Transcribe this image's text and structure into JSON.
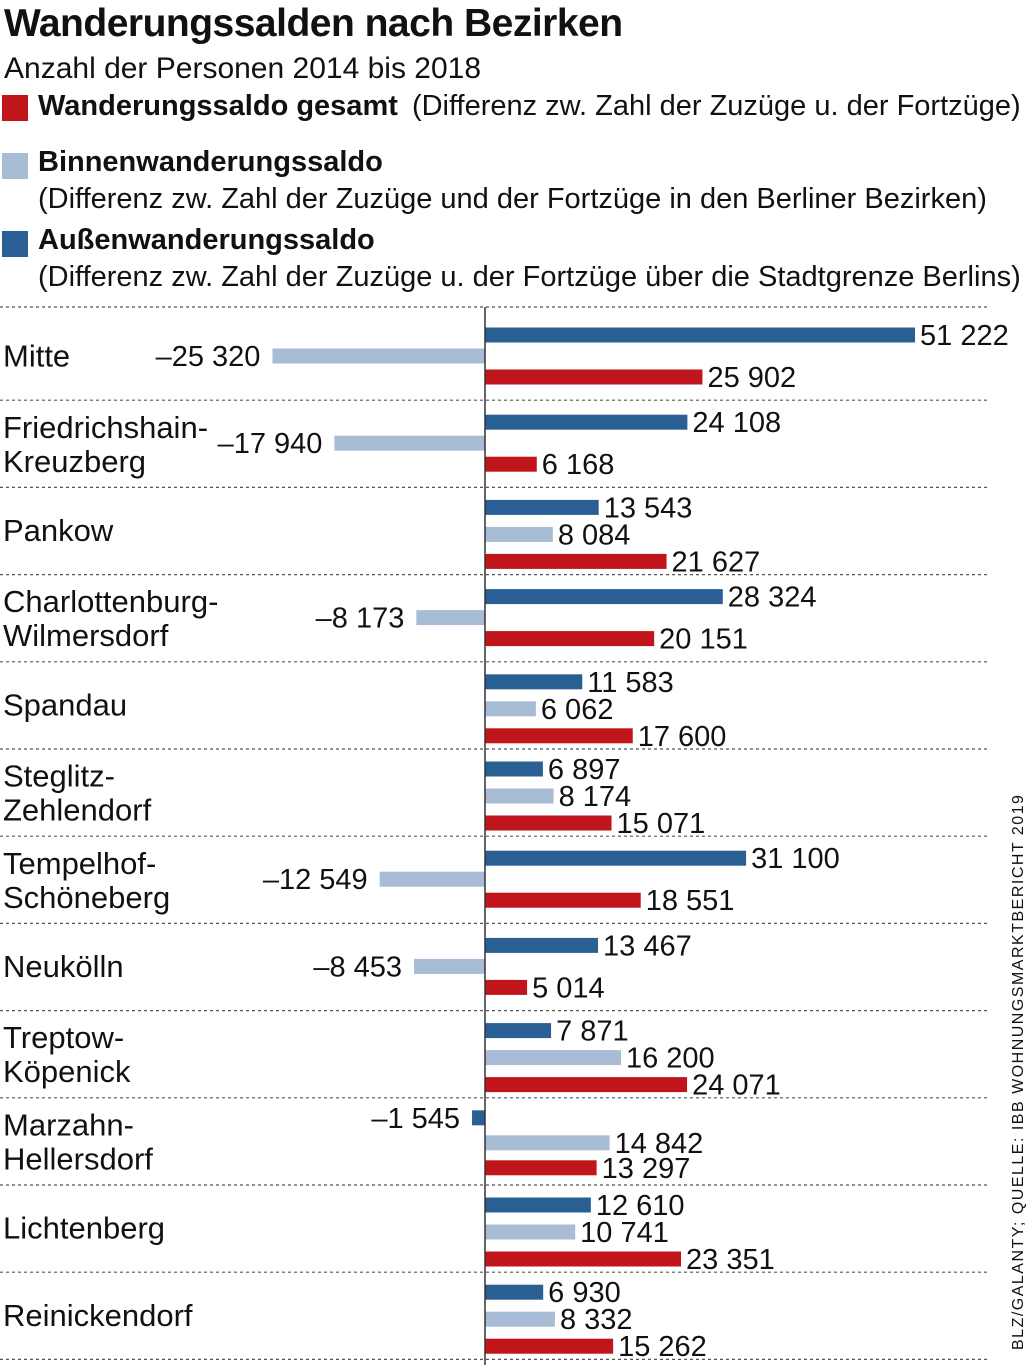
{
  "title": "Wanderungssalden nach Bezirken",
  "subtitle": "Anzahl der Personen 2014 bis 2018",
  "legend": [
    {
      "name": "Wanderungssaldo gesamt",
      "desc": "(Differenz zw. Zahl der Zuzüge u. der Fortzüge)",
      "color": "#c0151b"
    },
    {
      "name": "Binnenwanderungssaldo",
      "desc": "(Differenz zw. Zahl der Zuzüge und der Fortzüge in den Berliner Bezirken)",
      "color": "#a9bcd6"
    },
    {
      "name": "Außenwanderungssaldo",
      "desc": "(Differenz zw. Zahl der Zuzüge u. der Fortzüge über die Stadtgrenze Berlins)",
      "color": "#2a5f93"
    }
  ],
  "source": "BLZ/GALANTY; QUELLE: IBB WOHNUNGSMARKTBERICHT 2019",
  "chart_data": {
    "type": "bar",
    "orientation": "horizontal",
    "categories": [
      [
        "Mitte"
      ],
      [
        "Friedrichshain-",
        "Kreuzberg"
      ],
      [
        "Pankow"
      ],
      [
        "Charlottenburg-",
        "Wilmersdorf"
      ],
      [
        "Spandau"
      ],
      [
        "Steglitz-",
        "Zehlendorf"
      ],
      [
        "Tempelhof-",
        "Schöneberg"
      ],
      [
        "Neukölln"
      ],
      [
        "Treptow-",
        "Köpenick"
      ],
      [
        "Marzahn-",
        "Hellersdorf"
      ],
      [
        "Lichtenberg"
      ],
      [
        "Reinickendorf"
      ]
    ],
    "series": [
      {
        "name": "Außenwanderungssaldo",
        "color": "#2a5f93",
        "values": [
          51222,
          24108,
          13543,
          28324,
          11583,
          6897,
          31100,
          13467,
          7871,
          -1545,
          12610,
          6930
        ],
        "labels": [
          "51 222",
          "24 108",
          "13 543",
          "28 324",
          "11 583",
          "6 897",
          "31 100",
          "13 467",
          "7 871",
          "–1 545",
          "12 610",
          "6 930"
        ]
      },
      {
        "name": "Binnenwanderungssaldo",
        "color": "#a9bcd6",
        "values": [
          -25320,
          -17940,
          8084,
          -8173,
          6062,
          8174,
          -12549,
          -8453,
          16200,
          14842,
          10741,
          8332
        ],
        "labels": [
          "–25 320",
          "–17 940",
          "8 084",
          "–8 173",
          "6 062",
          "8 174",
          "–12 549",
          "–8 453",
          "16 200",
          "14 842",
          "10 741",
          "8 332"
        ]
      },
      {
        "name": "Wanderungssaldo gesamt",
        "color": "#c0151b",
        "values": [
          25902,
          6168,
          21627,
          20151,
          17600,
          15071,
          18551,
          5014,
          24071,
          13297,
          23351,
          15262
        ],
        "labels": [
          "25 902",
          "6 168",
          "21 627",
          "20 151",
          "17 600",
          "15 071",
          "18 551",
          "5 014",
          "24 071",
          "13 297",
          "23 351",
          "15 262"
        ]
      }
    ],
    "xlim": [
      -57500,
      62000
    ],
    "grid": false,
    "legend_position": "top"
  }
}
